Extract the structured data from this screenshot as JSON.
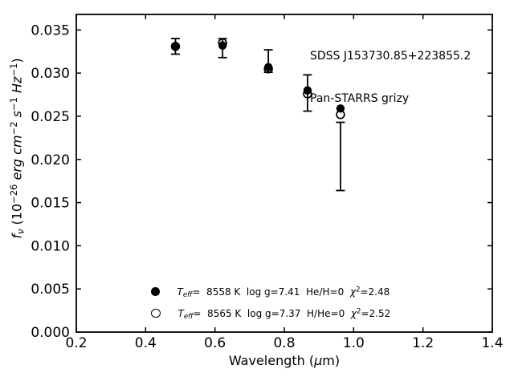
{
  "figure": {
    "background": "#ffffff",
    "ink": "#000000"
  },
  "annotation": {
    "line1": "SDSS J153730.85+223855.2",
    "line2": "Pan-STARRS grizy"
  },
  "axes": {
    "xlabel_parts": {
      "pre": "Wavelength (",
      "mu": "μ",
      "post": "m)"
    },
    "ylabel_parts": {
      "f": "f",
      "nu": "ν",
      "p1": " (10",
      "e1": "−26",
      "u1": " erg cm",
      "e2": "−2",
      "u2": " s",
      "e3": "−1",
      "u3": " Hz",
      "e4": "−1",
      "p2": ")"
    }
  },
  "legend": {
    "rows": [
      {
        "t": "T",
        "sub": "eff",
        "mid": "=  8558 K  log g=7.41  He/H=0  ",
        "chi": "χ",
        "sup": "2",
        "tail": "=2.48"
      },
      {
        "t": "T",
        "sub": "eff",
        "mid": "=  8565 K  log g=7.37  H/He=0  ",
        "chi": "χ",
        "sup": "2",
        "tail": "=2.52"
      }
    ]
  },
  "chart_data": {
    "type": "scatter",
    "title": "",
    "annotation": [
      "SDSS J153730.85+223855.2",
      "Pan-STARRS grizy"
    ],
    "xlabel": "Wavelength (μm)",
    "ylabel": "f_ν (10^−26 erg cm^−2 s^−1 Hz^−1)",
    "xlim": [
      0.2,
      1.4
    ],
    "ylim": [
      0,
      0.0368
    ],
    "grid": false,
    "legend_position": "lower-center-inside",
    "flux_units": "10^−26 erg cm^−2 s^−1 Hz^−1",
    "xticks": [
      {
        "v": 0.2,
        "label": "0.2"
      },
      {
        "v": 0.4,
        "label": "0.4"
      },
      {
        "v": 0.6,
        "label": "0.6"
      },
      {
        "v": 0.8,
        "label": "0.8"
      },
      {
        "v": 1.0,
        "label": "1.0"
      },
      {
        "v": 1.2,
        "label": "1.2"
      },
      {
        "v": 1.4,
        "label": "1.4"
      }
    ],
    "yticks": [
      {
        "v": 0.0,
        "label": "0.000"
      },
      {
        "v": 0.005,
        "label": "0.005"
      },
      {
        "v": 0.01,
        "label": "0.010"
      },
      {
        "v": 0.015,
        "label": "0.015"
      },
      {
        "v": 0.02,
        "label": "0.020"
      },
      {
        "v": 0.025,
        "label": "0.025"
      },
      {
        "v": 0.03,
        "label": "0.030"
      },
      {
        "v": 0.035,
        "label": "0.035"
      }
    ],
    "observed_photometry": [
      {
        "band": "g",
        "wavelength_um": 0.486,
        "flux_lo": 0.0322,
        "flux_hi": 0.034
      },
      {
        "band": "r",
        "wavelength_um": 0.622,
        "flux_lo": 0.0318,
        "flux_hi": 0.034
      },
      {
        "band": "i",
        "wavelength_um": 0.754,
        "flux_lo": 0.0301,
        "flux_hi": 0.0327
      },
      {
        "band": "z",
        "wavelength_um": 0.867,
        "flux_lo": 0.0256,
        "flux_hi": 0.0298
      },
      {
        "band": "y",
        "wavelength_um": 0.962,
        "flux_lo": 0.0164,
        "flux_hi": 0.0243
      }
    ],
    "models": [
      {
        "marker": "filled-circle",
        "teff_K": 8558,
        "logg": 7.41,
        "composition": "He/H=0",
        "chi2": 2.48,
        "points": [
          {
            "band": "g",
            "wavelength_um": 0.486,
            "flux": 0.0331
          },
          {
            "band": "r",
            "wavelength_um": 0.622,
            "flux": 0.0332
          },
          {
            "band": "i",
            "wavelength_um": 0.754,
            "flux": 0.0307
          },
          {
            "band": "z",
            "wavelength_um": 0.867,
            "flux": 0.028
          },
          {
            "band": "y",
            "wavelength_um": 0.962,
            "flux": 0.0259
          }
        ]
      },
      {
        "marker": "open-circle",
        "teff_K": 8565,
        "logg": 7.37,
        "composition": "H/He=0",
        "chi2": 2.52,
        "points": [
          {
            "band": "g",
            "wavelength_um": 0.486,
            "flux": 0.0331
          },
          {
            "band": "r",
            "wavelength_um": 0.622,
            "flux": 0.0335
          },
          {
            "band": "i",
            "wavelength_um": 0.754,
            "flux": 0.0305
          },
          {
            "band": "z",
            "wavelength_um": 0.867,
            "flux": 0.0276
          },
          {
            "band": "y",
            "wavelength_um": 0.962,
            "flux": 0.0252
          }
        ]
      }
    ]
  }
}
